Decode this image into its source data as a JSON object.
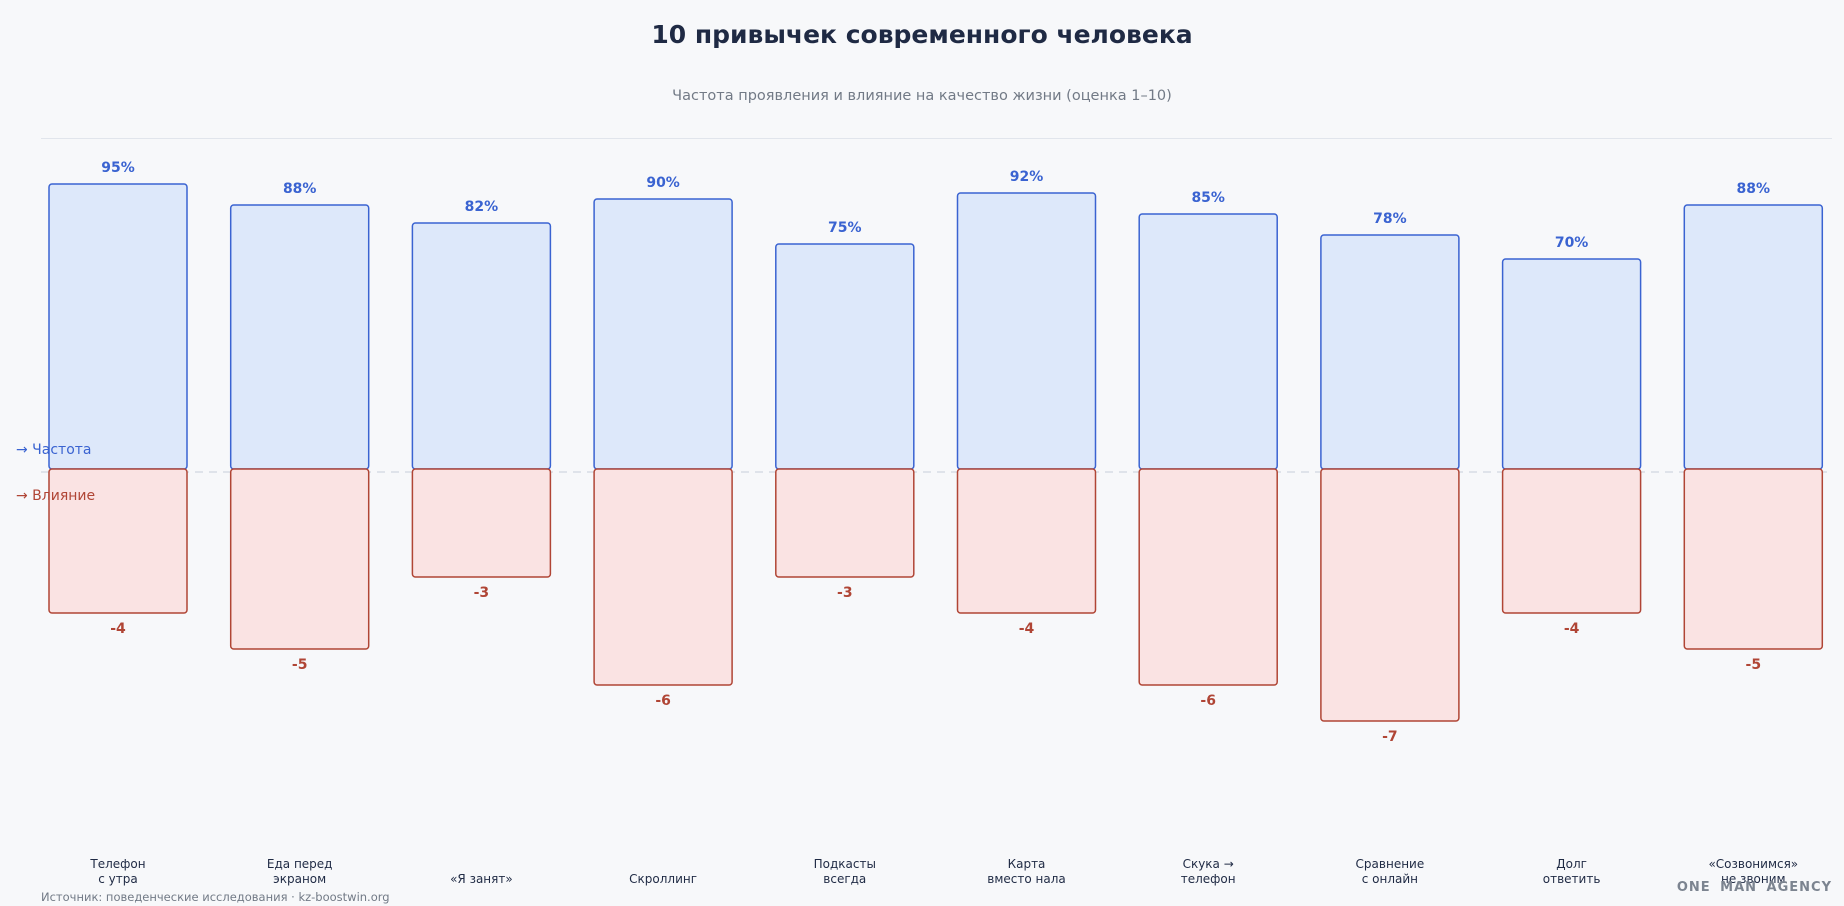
{
  "chart_data": {
    "type": "bar",
    "title": "10 привычек современного человека",
    "subtitle": "Частота проявления и влияние на качество жизни (оценка 1–10)",
    "categories": [
      "Телефон\nс утра",
      "Еда перед\nэкраном",
      "«Я занят»",
      "Скроллинг",
      "Подкасты\nвсегда",
      "Карта\nвместо нала",
      "Скука →\nтелефон",
      "Сравнение\nс онлайн",
      "Долг\nответить",
      "«Созвонимся»\nне звоним"
    ],
    "series": [
      {
        "name": "→ Частота",
        "values": [
          95,
          88,
          82,
          90,
          75,
          92,
          85,
          78,
          70,
          88
        ],
        "labels": [
          "95%",
          "88%",
          "82%",
          "90%",
          "75%",
          "92%",
          "85%",
          "78%",
          "70%",
          "88%"
        ],
        "color": "#3a63d1",
        "fill": "#dde8fa"
      },
      {
        "name": "→ Влияние",
        "values": [
          -4,
          -5,
          -3,
          -6,
          -3,
          -4,
          -6,
          -7,
          -4,
          -5
        ],
        "labels": [
          "-4",
          "-5",
          "-3",
          "-6",
          "-3",
          "-4",
          "-6",
          "-7",
          "-4",
          "-5"
        ],
        "color": "#b04535",
        "fill": "#fae3e3"
      }
    ],
    "grid": false,
    "legend": "left"
  },
  "footer": {
    "source": "Источник: поведенческие исследования · kz-boostwin.org",
    "brand": "ONE MAN AGENCY"
  }
}
